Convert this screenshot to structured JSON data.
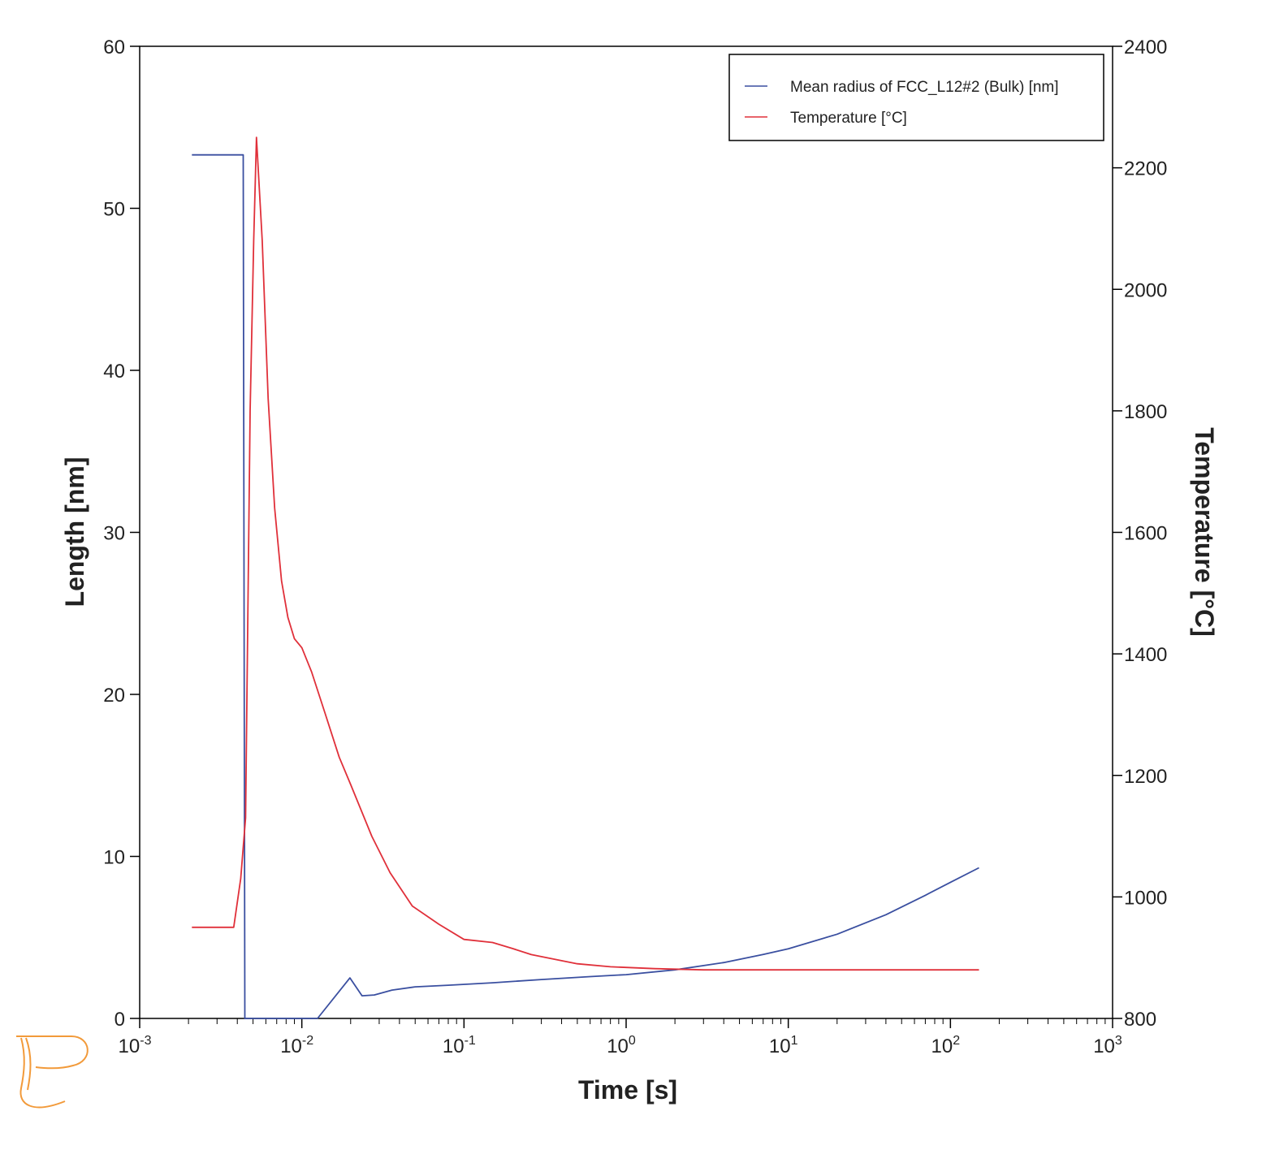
{
  "chart_data": {
    "type": "line",
    "xlabel": "Time [s]",
    "ylabel": "Length [nm]",
    "y2label": "Temperature [°C]",
    "xscale": "log",
    "xlim": [
      0.001,
      1000
    ],
    "ylim": [
      0,
      60
    ],
    "y2lim": [
      800,
      2400
    ],
    "x_ticks": [
      {
        "base": "10",
        "exp": "-3",
        "value": 0.001
      },
      {
        "base": "10",
        "exp": "-2",
        "value": 0.01
      },
      {
        "base": "10",
        "exp": "-1",
        "value": 0.1
      },
      {
        "base": "10",
        "exp": "0",
        "value": 1
      },
      {
        "base": "10",
        "exp": "1",
        "value": 10
      },
      {
        "base": "10",
        "exp": "2",
        "value": 100
      },
      {
        "base": "10",
        "exp": "3",
        "value": 1000
      }
    ],
    "y_ticks": [
      "0",
      "10",
      "20",
      "30",
      "40",
      "50",
      "60"
    ],
    "y2_ticks": [
      "800",
      "1000",
      "1200",
      "1400",
      "1600",
      "1800",
      "2000",
      "2200",
      "2400"
    ],
    "grid": false,
    "legend_position": "top-right",
    "series": [
      {
        "name": "Mean radius of FCC_L12#2 (Bulk) [nm]",
        "axis": "left",
        "color": "#3a4fa0",
        "points": [
          [
            0.0021,
            53.3
          ],
          [
            0.00435,
            53.3
          ],
          [
            0.00445,
            0
          ],
          [
            0.0125,
            0
          ],
          [
            0.0198,
            2.5
          ],
          [
            0.0235,
            1.4
          ],
          [
            0.028,
            1.45
          ],
          [
            0.036,
            1.75
          ],
          [
            0.05,
            1.95
          ],
          [
            0.08,
            2.05
          ],
          [
            0.15,
            2.2
          ],
          [
            0.3,
            2.4
          ],
          [
            0.6,
            2.58
          ],
          [
            1.0,
            2.7
          ],
          [
            2.0,
            3.0
          ],
          [
            4.0,
            3.45
          ],
          [
            7.0,
            3.95
          ],
          [
            10,
            4.3
          ],
          [
            20,
            5.2
          ],
          [
            40,
            6.4
          ],
          [
            70,
            7.6
          ],
          [
            100,
            8.4
          ],
          [
            150,
            9.3
          ]
        ]
      },
      {
        "name": "Temperature [°C]",
        "axis": "right",
        "color": "#e0303a",
        "points": [
          [
            0.0021,
            950
          ],
          [
            0.0038,
            950
          ],
          [
            0.0042,
            1030
          ],
          [
            0.0045,
            1130
          ],
          [
            0.0048,
            1800
          ],
          [
            0.00505,
            2080
          ],
          [
            0.00525,
            2250
          ],
          [
            0.0057,
            2080
          ],
          [
            0.0062,
            1820
          ],
          [
            0.0068,
            1640
          ],
          [
            0.0075,
            1520
          ],
          [
            0.0082,
            1460
          ],
          [
            0.009,
            1425
          ],
          [
            0.01,
            1410
          ],
          [
            0.0115,
            1370
          ],
          [
            0.014,
            1300
          ],
          [
            0.017,
            1230
          ],
          [
            0.02,
            1185
          ],
          [
            0.027,
            1100
          ],
          [
            0.035,
            1040
          ],
          [
            0.048,
            985
          ],
          [
            0.07,
            955
          ],
          [
            0.1,
            930
          ],
          [
            0.15,
            925
          ],
          [
            0.2,
            915
          ],
          [
            0.26,
            905
          ],
          [
            0.4,
            895
          ],
          [
            0.5,
            890
          ],
          [
            0.8,
            885
          ],
          [
            1.5,
            882
          ],
          [
            3.0,
            880
          ],
          [
            10,
            880
          ],
          [
            30,
            880
          ],
          [
            100,
            880
          ],
          [
            150,
            880
          ]
        ]
      }
    ]
  },
  "logo": {
    "name": "thermo-calc-logo",
    "color": "#f29a3a"
  }
}
